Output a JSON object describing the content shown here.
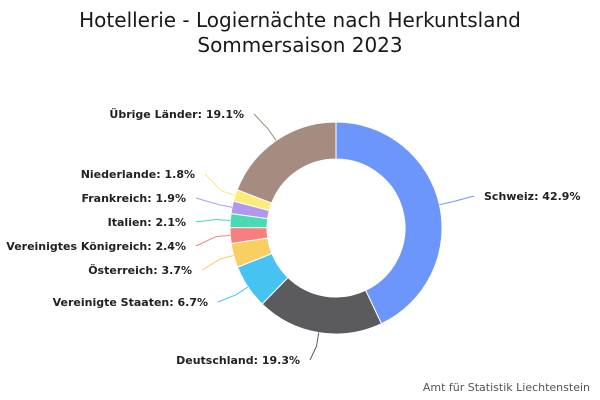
{
  "chart_data": {
    "type": "pie",
    "style": "donut",
    "title_line1": "Hotellerie - Logiernächte nach Herkuntsland",
    "title_line2": "Sommersaison 2023",
    "slices": [
      {
        "label": "Schweiz: 42.9%",
        "name": "Schweiz",
        "value": 42.9,
        "color": "#6c96fb"
      },
      {
        "label": "Deutschland: 19.3%",
        "name": "Deutschland",
        "value": 19.3,
        "color": "#5b5b5d"
      },
      {
        "label": "Vereinigte Staaten: 6.7%",
        "name": "Vereinigte Staaten",
        "value": 6.7,
        "color": "#47c3f2"
      },
      {
        "label": "Österreich: 3.7%",
        "name": "Österreich",
        "value": 3.7,
        "color": "#f7cf63"
      },
      {
        "label": "Vereinigtes Königreich: 2.4%",
        "name": "Vereinigtes Königreich",
        "value": 2.4,
        "color": "#f77f80"
      },
      {
        "label": "Italien: 2.1%",
        "name": "Italien",
        "value": 2.1,
        "color": "#48dab1"
      },
      {
        "label": "Frankreich: 1.9%",
        "name": "Frankreich",
        "value": 1.9,
        "color": "#b197ee"
      },
      {
        "label": "Niederlande: 1.8%",
        "name": "Niederlande",
        "value": 1.8,
        "color": "#fbeb78"
      },
      {
        "label": "Übrige Länder: 19.1%",
        "name": "Übrige Länder",
        "value": 19.1,
        "color": "#a58b80"
      }
    ]
  },
  "credit": "Amt für Statistik Liechtenstein"
}
